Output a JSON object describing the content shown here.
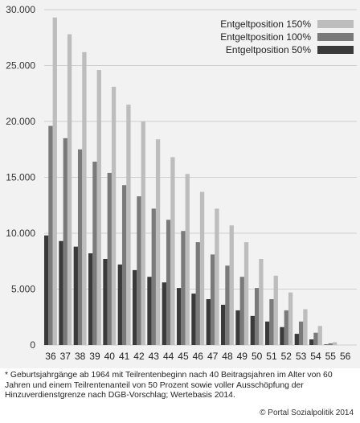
{
  "chart_data": {
    "type": "bar",
    "categories": [
      "36",
      "37",
      "38",
      "39",
      "40",
      "41",
      "42",
      "43",
      "44",
      "45",
      "46",
      "47",
      "48",
      "49",
      "50",
      "51",
      "52",
      "53",
      "54",
      "55",
      "56"
    ],
    "series": [
      {
        "name": "Entgeltposition 150%",
        "color": "#bdbdbd",
        "values": [
          29300,
          27800,
          26200,
          24600,
          23100,
          21500,
          20000,
          18400,
          16800,
          15300,
          13700,
          12200,
          10700,
          9200,
          7700,
          6200,
          4700,
          3200,
          1700,
          250,
          0
        ]
      },
      {
        "name": "Entgeltposition 100%",
        "color": "#7a7a7a",
        "values": [
          19600,
          18500,
          17500,
          16400,
          15400,
          14300,
          13300,
          12200,
          11200,
          10200,
          9200,
          8100,
          7100,
          6100,
          5100,
          4100,
          3100,
          2100,
          1100,
          150,
          0
        ]
      },
      {
        "name": "Entgeltposition   50%",
        "color": "#3a3a3a",
        "values": [
          9800,
          9300,
          8800,
          8200,
          7700,
          7200,
          6700,
          6100,
          5600,
          5100,
          4600,
          4100,
          3600,
          3100,
          2600,
          2100,
          1600,
          1000,
          500,
          50,
          0
        ]
      }
    ],
    "yticks": [
      "0",
      "5.000",
      "10.000",
      "15.000",
      "20.000",
      "25.000",
      "30.000"
    ],
    "ylim": [
      0,
      30000
    ],
    "grid": true,
    "legend_position": "top-right",
    "footnote": "* Geburtsjahrgänge ab 1964 mit Teilrentenbeginn nach 40 Beitragsjahren im Alter von 60 Jahren und einem Teilrentenanteil von 50 Prozent sowie voller Ausschöpfung der Hinzuverdienstgrenze nach DGB-Vorschlag; Wertebasis 2014.",
    "copyright": "© Portal Sozialpolitik 2014"
  }
}
